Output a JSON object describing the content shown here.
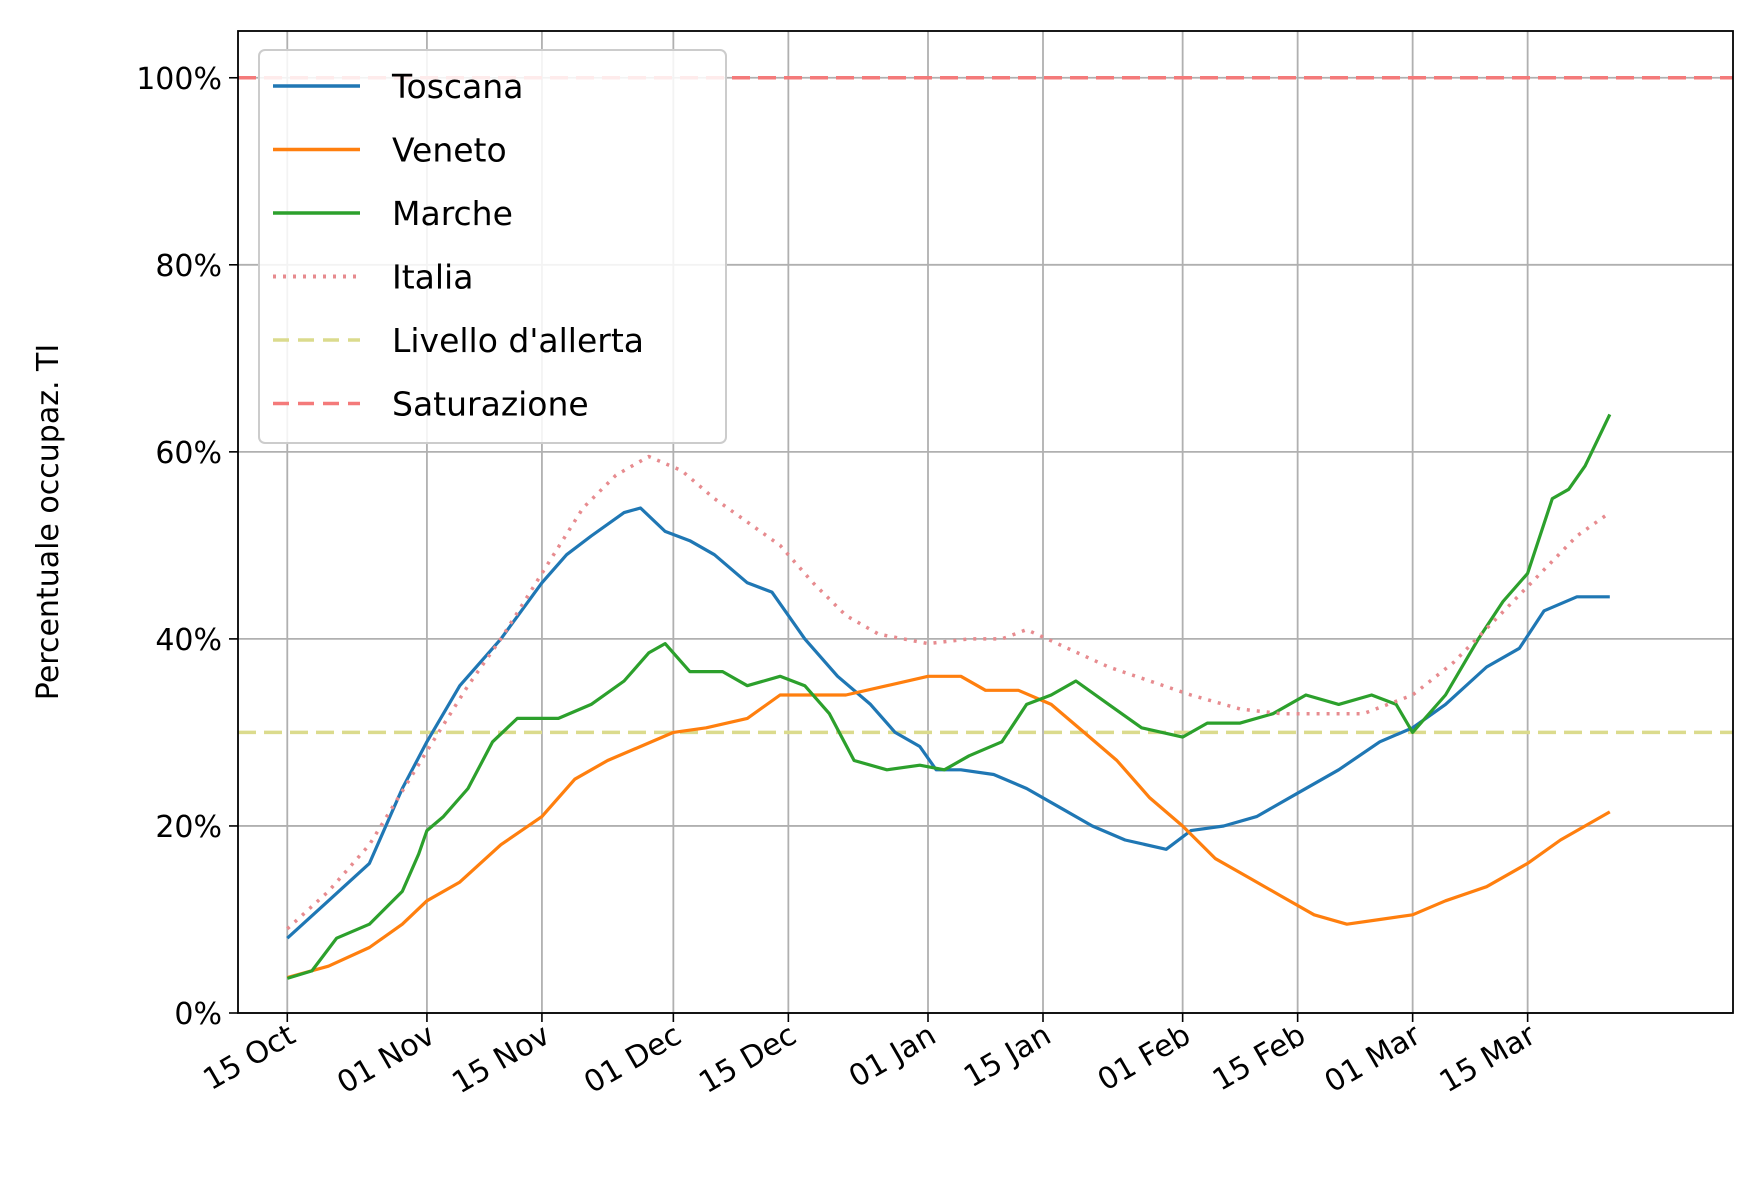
{
  "chart_data": {
    "type": "line",
    "ylabel": "Percentuale occupaz. TI",
    "xlabel": "",
    "ylim": [
      0,
      105
    ],
    "xlim": [
      "2020-10-09",
      "2021-04-09"
    ],
    "grid": true,
    "legend_position": "top-left",
    "x_ticks": [
      {
        "date": "2020-10-15",
        "label": "15 Oct"
      },
      {
        "date": "2020-11-01",
        "label": "01 Nov"
      },
      {
        "date": "2020-11-15",
        "label": "15 Nov"
      },
      {
        "date": "2020-12-01",
        "label": "01 Dec"
      },
      {
        "date": "2020-12-15",
        "label": "15 Dec"
      },
      {
        "date": "2021-01-01",
        "label": "01 Jan"
      },
      {
        "date": "2021-01-15",
        "label": "15 Jan"
      },
      {
        "date": "2021-02-01",
        "label": "01 Feb"
      },
      {
        "date": "2021-02-15",
        "label": "15 Feb"
      },
      {
        "date": "2021-03-01",
        "label": "01 Mar"
      },
      {
        "date": "2021-03-15",
        "label": "15 Mar"
      }
    ],
    "y_ticks": [
      {
        "value": 0,
        "label": "0%"
      },
      {
        "value": 20,
        "label": "20%"
      },
      {
        "value": 40,
        "label": "40%"
      },
      {
        "value": 60,
        "label": "60%"
      },
      {
        "value": 80,
        "label": "80%"
      },
      {
        "value": 100,
        "label": "100%"
      }
    ],
    "series": [
      {
        "name": "Toscana",
        "color": "#1f77b4",
        "style": "solid",
        "points": [
          [
            "2020-10-15",
            8
          ],
          [
            "2020-10-20",
            12
          ],
          [
            "2020-10-25",
            16
          ],
          [
            "2020-10-29",
            24
          ],
          [
            "2020-11-01",
            29
          ],
          [
            "2020-11-05",
            35
          ],
          [
            "2020-11-10",
            40
          ],
          [
            "2020-11-15",
            46
          ],
          [
            "2020-11-18",
            49
          ],
          [
            "2020-11-21",
            51
          ],
          [
            "2020-11-25",
            53.5
          ],
          [
            "2020-11-27",
            54
          ],
          [
            "2020-11-30",
            51.5
          ],
          [
            "2020-12-03",
            50.5
          ],
          [
            "2020-12-06",
            49
          ],
          [
            "2020-12-10",
            46
          ],
          [
            "2020-12-13",
            45
          ],
          [
            "2020-12-17",
            40
          ],
          [
            "2020-12-21",
            36
          ],
          [
            "2020-12-25",
            33
          ],
          [
            "2020-12-28",
            30
          ],
          [
            "2020-12-31",
            28.5
          ],
          [
            "2021-01-02",
            26
          ],
          [
            "2021-01-05",
            26
          ],
          [
            "2021-01-09",
            25.5
          ],
          [
            "2021-01-13",
            24
          ],
          [
            "2021-01-17",
            22
          ],
          [
            "2021-01-21",
            20
          ],
          [
            "2021-01-25",
            18.5
          ],
          [
            "2021-01-30",
            17.5
          ],
          [
            "2021-02-02",
            19.5
          ],
          [
            "2021-02-06",
            20
          ],
          [
            "2021-02-10",
            21
          ],
          [
            "2021-02-15",
            23.5
          ],
          [
            "2021-02-20",
            26
          ],
          [
            "2021-02-25",
            29
          ],
          [
            "2021-03-01",
            30.5
          ],
          [
            "2021-03-05",
            33
          ],
          [
            "2021-03-10",
            37
          ],
          [
            "2021-03-14",
            39
          ],
          [
            "2021-03-17",
            43
          ],
          [
            "2021-03-21",
            44.5
          ],
          [
            "2021-03-25",
            44.5
          ]
        ]
      },
      {
        "name": "Veneto",
        "color": "#ff7f0e",
        "style": "solid",
        "points": [
          [
            "2020-10-15",
            3.8
          ],
          [
            "2020-10-20",
            5
          ],
          [
            "2020-10-25",
            7
          ],
          [
            "2020-10-29",
            9.5
          ],
          [
            "2020-11-01",
            12
          ],
          [
            "2020-11-05",
            14
          ],
          [
            "2020-11-10",
            18
          ],
          [
            "2020-11-15",
            21
          ],
          [
            "2020-11-19",
            25
          ],
          [
            "2020-11-23",
            27
          ],
          [
            "2020-11-27",
            28.5
          ],
          [
            "2020-12-01",
            30
          ],
          [
            "2020-12-05",
            30.5
          ],
          [
            "2020-12-10",
            31.5
          ],
          [
            "2020-12-14",
            34
          ],
          [
            "2020-12-18",
            34
          ],
          [
            "2020-12-22",
            34
          ],
          [
            "2020-12-27",
            35
          ],
          [
            "2021-01-01",
            36
          ],
          [
            "2021-01-05",
            36
          ],
          [
            "2021-01-08",
            34.5
          ],
          [
            "2021-01-12",
            34.5
          ],
          [
            "2021-01-16",
            33
          ],
          [
            "2021-01-20",
            30
          ],
          [
            "2021-01-24",
            27
          ],
          [
            "2021-01-28",
            23
          ],
          [
            "2021-02-01",
            20
          ],
          [
            "2021-02-05",
            16.5
          ],
          [
            "2021-02-09",
            14.5
          ],
          [
            "2021-02-13",
            12.5
          ],
          [
            "2021-02-17",
            10.5
          ],
          [
            "2021-02-21",
            9.5
          ],
          [
            "2021-02-25",
            10
          ],
          [
            "2021-03-01",
            10.5
          ],
          [
            "2021-03-05",
            12
          ],
          [
            "2021-03-10",
            13.5
          ],
          [
            "2021-03-15",
            16
          ],
          [
            "2021-03-19",
            18.5
          ],
          [
            "2021-03-25",
            21.5
          ]
        ]
      },
      {
        "name": "Marche",
        "color": "#2ca02c",
        "style": "solid",
        "points": [
          [
            "2020-10-15",
            3.7
          ],
          [
            "2020-10-18",
            4.5
          ],
          [
            "2020-10-21",
            8
          ],
          [
            "2020-10-25",
            9.5
          ],
          [
            "2020-10-29",
            13
          ],
          [
            "2020-10-31",
            17
          ],
          [
            "2020-11-01",
            19.5
          ],
          [
            "2020-11-03",
            21
          ],
          [
            "2020-11-06",
            24
          ],
          [
            "2020-11-09",
            29
          ],
          [
            "2020-11-12",
            31.5
          ],
          [
            "2020-11-17",
            31.5
          ],
          [
            "2020-11-21",
            33
          ],
          [
            "2020-11-25",
            35.5
          ],
          [
            "2020-11-28",
            38.5
          ],
          [
            "2020-11-30",
            39.5
          ],
          [
            "2020-12-03",
            36.5
          ],
          [
            "2020-12-07",
            36.5
          ],
          [
            "2020-12-10",
            35
          ],
          [
            "2020-12-14",
            36
          ],
          [
            "2020-12-17",
            35
          ],
          [
            "2020-12-20",
            32
          ],
          [
            "2020-12-23",
            27
          ],
          [
            "2020-12-27",
            26
          ],
          [
            "2020-12-31",
            26.5
          ],
          [
            "2021-01-03",
            26
          ],
          [
            "2021-01-06",
            27.5
          ],
          [
            "2021-01-10",
            29
          ],
          [
            "2021-01-13",
            33
          ],
          [
            "2021-01-16",
            34
          ],
          [
            "2021-01-19",
            35.5
          ],
          [
            "2021-01-23",
            33
          ],
          [
            "2021-01-27",
            30.5
          ],
          [
            "2021-02-01",
            29.5
          ],
          [
            "2021-02-04",
            31
          ],
          [
            "2021-02-08",
            31
          ],
          [
            "2021-02-12",
            32
          ],
          [
            "2021-02-16",
            34
          ],
          [
            "2021-02-20",
            33
          ],
          [
            "2021-02-24",
            34
          ],
          [
            "2021-02-27",
            33
          ],
          [
            "2021-03-01",
            30
          ],
          [
            "2021-03-05",
            34
          ],
          [
            "2021-03-09",
            40
          ],
          [
            "2021-03-12",
            44
          ],
          [
            "2021-03-15",
            47
          ],
          [
            "2021-03-18",
            55
          ],
          [
            "2021-03-20",
            56
          ],
          [
            "2021-03-22",
            58.5
          ],
          [
            "2021-03-25",
            64
          ]
        ]
      },
      {
        "name": "Italia",
        "color": "#e78b8f",
        "style": "dotted",
        "points": [
          [
            "2020-10-15",
            9
          ],
          [
            "2020-10-20",
            13
          ],
          [
            "2020-10-25",
            18
          ],
          [
            "2020-11-01",
            28
          ],
          [
            "2020-11-06",
            35
          ],
          [
            "2020-11-10",
            40
          ],
          [
            "2020-11-15",
            47
          ],
          [
            "2020-11-20",
            54
          ],
          [
            "2020-11-24",
            57.5
          ],
          [
            "2020-11-28",
            59.5
          ],
          [
            "2020-12-02",
            58
          ],
          [
            "2020-12-06",
            55
          ],
          [
            "2020-12-10",
            52.5
          ],
          [
            "2020-12-14",
            50
          ],
          [
            "2020-12-18",
            46
          ],
          [
            "2020-12-22",
            42.5
          ],
          [
            "2020-12-26",
            40.5
          ],
          [
            "2021-01-01",
            39.5
          ],
          [
            "2021-01-06",
            40
          ],
          [
            "2021-01-10",
            40
          ],
          [
            "2021-01-13",
            41
          ],
          [
            "2021-01-18",
            39
          ],
          [
            "2021-01-23",
            37
          ],
          [
            "2021-01-28",
            35.5
          ],
          [
            "2021-02-02",
            34
          ],
          [
            "2021-02-08",
            32.5
          ],
          [
            "2021-02-13",
            32
          ],
          [
            "2021-02-18",
            32
          ],
          [
            "2021-02-23",
            32
          ],
          [
            "2021-03-01",
            34
          ],
          [
            "2021-03-06",
            37.5
          ],
          [
            "2021-03-11",
            42
          ],
          [
            "2021-03-16",
            46.5
          ],
          [
            "2021-03-21",
            51
          ],
          [
            "2021-03-25",
            53.5
          ]
        ]
      },
      {
        "name": "Livello d'allerta",
        "color": "#dbdb8d",
        "style": "dashed",
        "hline": 30
      },
      {
        "name": "Saturazione",
        "color": "#f47a7a",
        "style": "dashed",
        "hline": 100
      }
    ]
  }
}
